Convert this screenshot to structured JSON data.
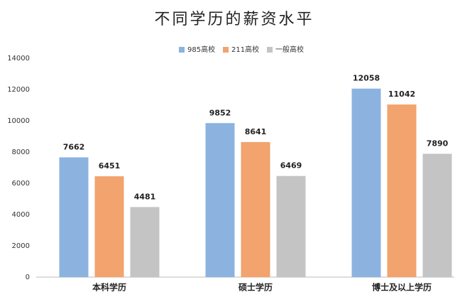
{
  "chart_data": {
    "type": "bar",
    "title": "不同学历的薪资水平",
    "categories": [
      "本科学历",
      "硕士学历",
      "博士及以上学历"
    ],
    "series": [
      {
        "name": "985高校",
        "color": "#8cb3e0",
        "values": [
          7662,
          9852,
          12058
        ]
      },
      {
        "name": "211高校",
        "color": "#f2a36e",
        "values": [
          6451,
          8641,
          11042
        ]
      },
      {
        "name": "一般高校",
        "color": "#c4c4c4",
        "values": [
          4481,
          6469,
          7890
        ]
      }
    ],
    "ylim": [
      0,
      14000
    ],
    "yticks": [
      0,
      2000,
      4000,
      6000,
      8000,
      10000,
      12000,
      14000
    ],
    "grid": false,
    "legend": "top"
  }
}
